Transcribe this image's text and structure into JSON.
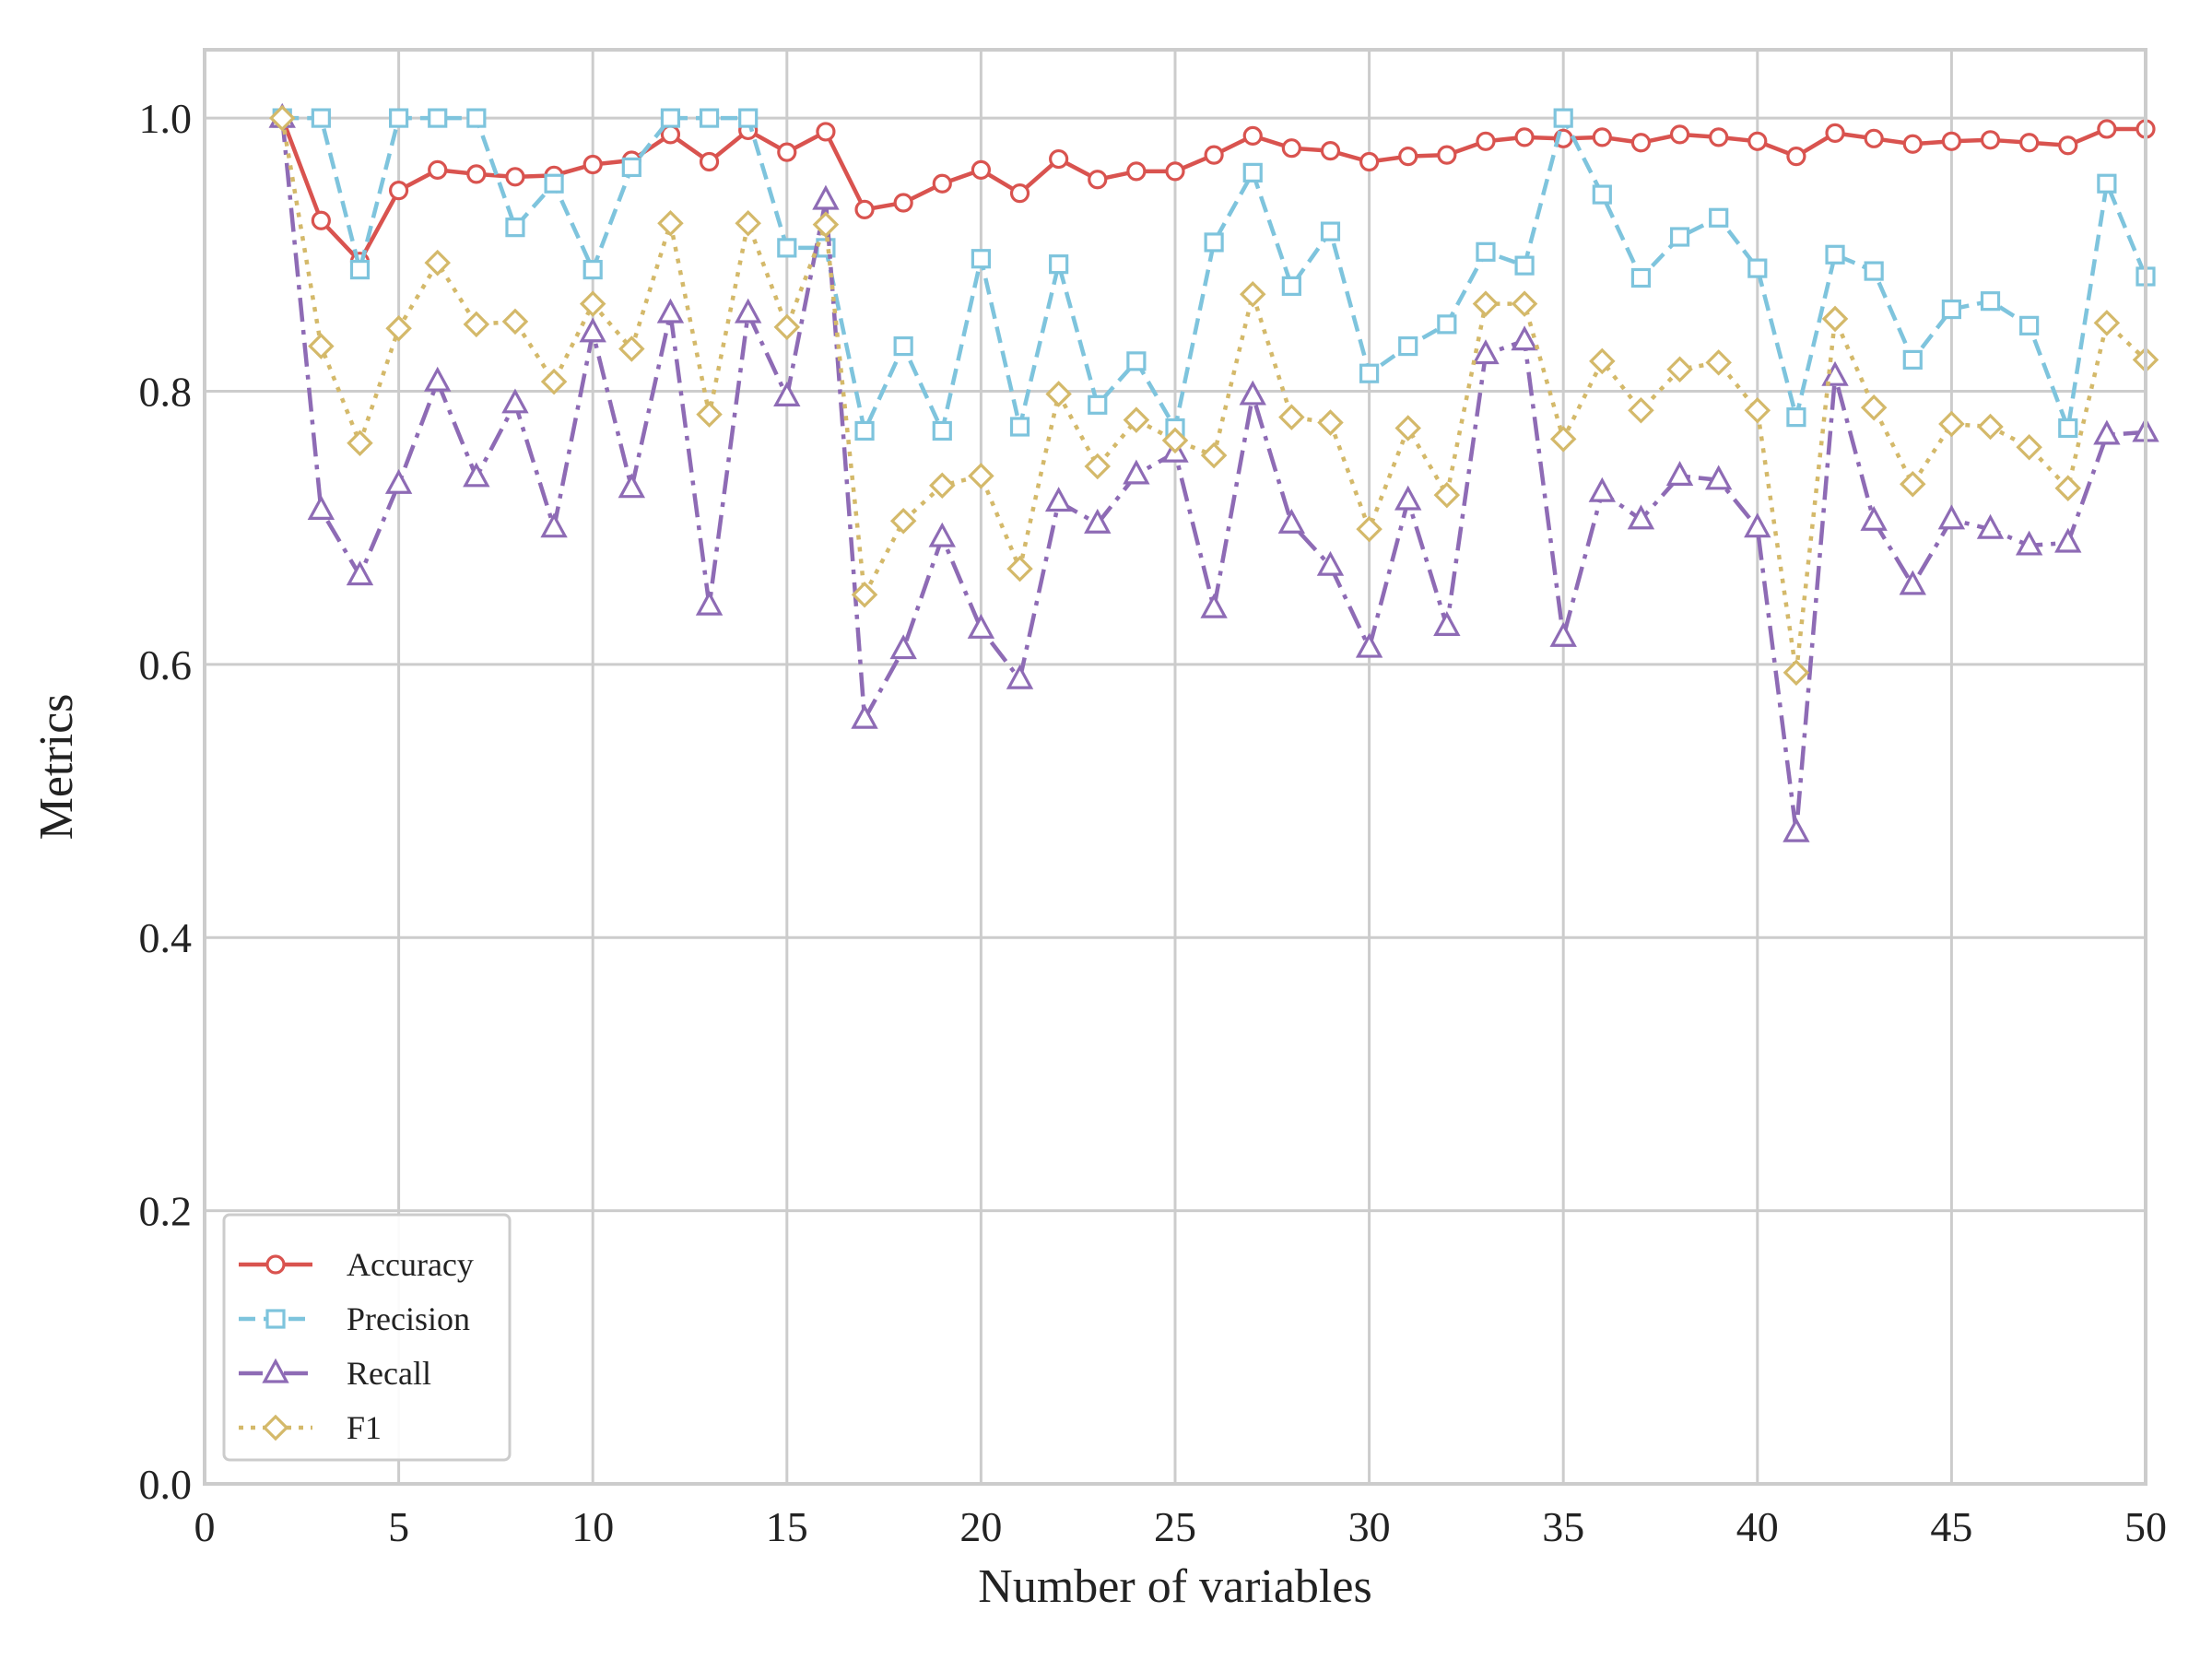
{
  "chart_data": {
    "type": "line",
    "xlabel": "Number of variables",
    "ylabel": "Metrics",
    "xlim": [
      0,
      50
    ],
    "ylim": [
      0.0,
      1.05
    ],
    "x_ticks": [
      "0",
      "5",
      "10",
      "15",
      "20",
      "25",
      "30",
      "35",
      "40",
      "45",
      "50"
    ],
    "y_ticks": [
      "0.0",
      "0.2",
      "0.4",
      "0.6",
      "0.8",
      "1.0"
    ],
    "grid": true,
    "legend_position": "lower-left",
    "x": [
      2,
      3,
      4,
      5,
      6,
      7,
      8,
      9,
      10,
      11,
      12,
      13,
      14,
      15,
      16,
      17,
      18,
      19,
      20,
      21,
      22,
      23,
      24,
      25,
      26,
      27,
      28,
      29,
      30,
      31,
      32,
      33,
      34,
      35,
      36,
      37,
      38,
      39,
      40,
      41,
      42,
      43,
      44,
      45,
      46,
      47,
      48,
      49,
      50
    ],
    "series": [
      {
        "name": "Accuracy",
        "color": "#d9534f",
        "marker": "circle",
        "dash": "solid",
        "values": [
          1.0,
          0.925,
          0.895,
          0.947,
          0.962,
          0.959,
          0.957,
          0.958,
          0.966,
          0.969,
          0.988,
          0.968,
          0.991,
          0.975,
          0.99,
          0.933,
          0.938,
          0.952,
          0.962,
          0.945,
          0.97,
          0.955,
          0.961,
          0.961,
          0.973,
          0.987,
          0.978,
          0.976,
          0.968,
          0.972,
          0.973,
          0.983,
          0.986,
          0.985,
          0.986,
          0.982,
          0.988,
          0.986,
          0.983,
          0.972,
          0.989,
          0.985,
          0.981,
          0.983,
          0.984,
          0.982,
          0.98,
          0.992,
          0.992
        ]
      },
      {
        "name": "Precision",
        "color": "#7ec4dd",
        "marker": "square",
        "dash": "dashed",
        "values": [
          1.0,
          1.0,
          0.889,
          1.0,
          1.0,
          1.0,
          0.92,
          0.952,
          0.889,
          0.964,
          1.0,
          1.0,
          1.0,
          0.905,
          0.905,
          0.771,
          0.833,
          0.771,
          0.897,
          0.774,
          0.893,
          0.79,
          0.822,
          0.773,
          0.909,
          0.96,
          0.877,
          0.917,
          0.813,
          0.833,
          0.849,
          0.902,
          0.892,
          1.0,
          0.944,
          0.883,
          0.913,
          0.927,
          0.89,
          0.781,
          0.9,
          0.888,
          0.823,
          0.86,
          0.866,
          0.848,
          0.773,
          0.952,
          0.884
        ]
      },
      {
        "name": "Recall",
        "color": "#8e6bb5",
        "marker": "triangle",
        "dash": "dashdot",
        "values": [
          1.0,
          0.713,
          0.665,
          0.732,
          0.807,
          0.737,
          0.791,
          0.7,
          0.843,
          0.729,
          0.857,
          0.643,
          0.857,
          0.796,
          0.94,
          0.56,
          0.611,
          0.693,
          0.626,
          0.589,
          0.719,
          0.703,
          0.739,
          0.755,
          0.641,
          0.797,
          0.703,
          0.672,
          0.612,
          0.72,
          0.628,
          0.827,
          0.837,
          0.62,
          0.726,
          0.706,
          0.738,
          0.735,
          0.7,
          0.477,
          0.811,
          0.705,
          0.658,
          0.706,
          0.699,
          0.687,
          0.689,
          0.768,
          0.77
        ]
      },
      {
        "name": "F1",
        "color": "#d4b96a",
        "marker": "diamond",
        "dash": "dotted",
        "values": [
          1.0,
          0.833,
          0.762,
          0.846,
          0.894,
          0.849,
          0.851,
          0.807,
          0.864,
          0.831,
          0.923,
          0.783,
          0.923,
          0.847,
          0.922,
          0.651,
          0.705,
          0.731,
          0.738,
          0.67,
          0.798,
          0.745,
          0.779,
          0.764,
          0.753,
          0.871,
          0.781,
          0.777,
          0.699,
          0.773,
          0.724,
          0.864,
          0.864,
          0.765,
          0.822,
          0.786,
          0.816,
          0.821,
          0.786,
          0.594,
          0.853,
          0.788,
          0.732,
          0.776,
          0.774,
          0.759,
          0.729,
          0.85,
          0.823
        ]
      }
    ]
  }
}
